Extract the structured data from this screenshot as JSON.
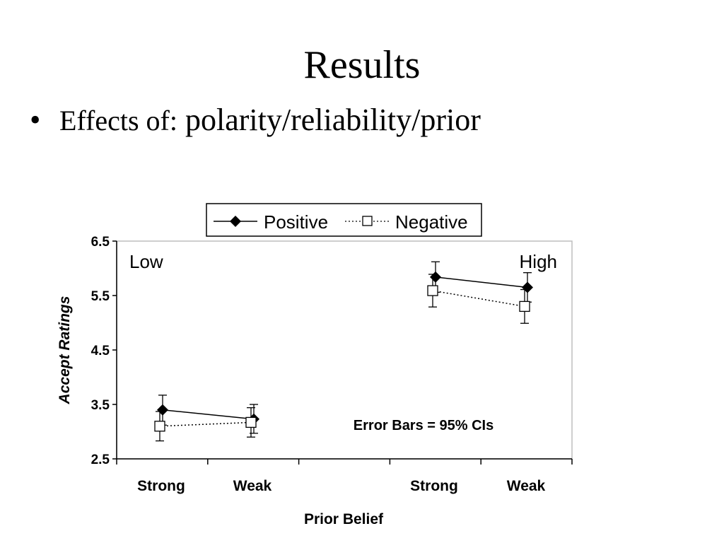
{
  "slide": {
    "title": "Results",
    "bullet_lead": "Effects of:",
    "bullet_text": "polarity/reliability/prior",
    "bullet_symbol": "•"
  },
  "chart_data": {
    "type": "line",
    "categories": [
      "Strong",
      "Weak",
      "Strong",
      "Weak"
    ],
    "group_labels": [
      "Low",
      "High"
    ],
    "xlabel": "Prior Belief",
    "ylabel": "Accept Ratings",
    "ylim": [
      2.5,
      6.5
    ],
    "yticks": [
      "6.5",
      "5.5",
      "4.5",
      "3.5",
      "2.5"
    ],
    "annotation": "Error Bars = 95% CIs",
    "legend_position": "top-center",
    "grid": false,
    "series": [
      {
        "name": "Positive",
        "marker": "filled-diamond",
        "line": "solid",
        "color": "#000000",
        "groups": [
          {
            "values": [
              3.4,
              3.23
            ],
            "ci_low": [
              3.12,
              2.97
            ],
            "ci_high": [
              3.67,
              3.5
            ]
          },
          {
            "values": [
              5.84,
              5.65
            ],
            "ci_low": [
              5.56,
              5.38
            ],
            "ci_high": [
              6.12,
              5.92
            ]
          }
        ]
      },
      {
        "name": "Negative",
        "marker": "open-square",
        "line": "dotted",
        "color": "#000000",
        "groups": [
          {
            "values": [
              3.1,
              3.17
            ],
            "ci_low": [
              2.83,
              2.9
            ],
            "ci_high": [
              3.37,
              3.44
            ]
          },
          {
            "values": [
              5.59,
              5.3
            ],
            "ci_low": [
              5.29,
              4.99
            ],
            "ci_high": [
              5.89,
              5.61
            ]
          }
        ]
      }
    ]
  }
}
